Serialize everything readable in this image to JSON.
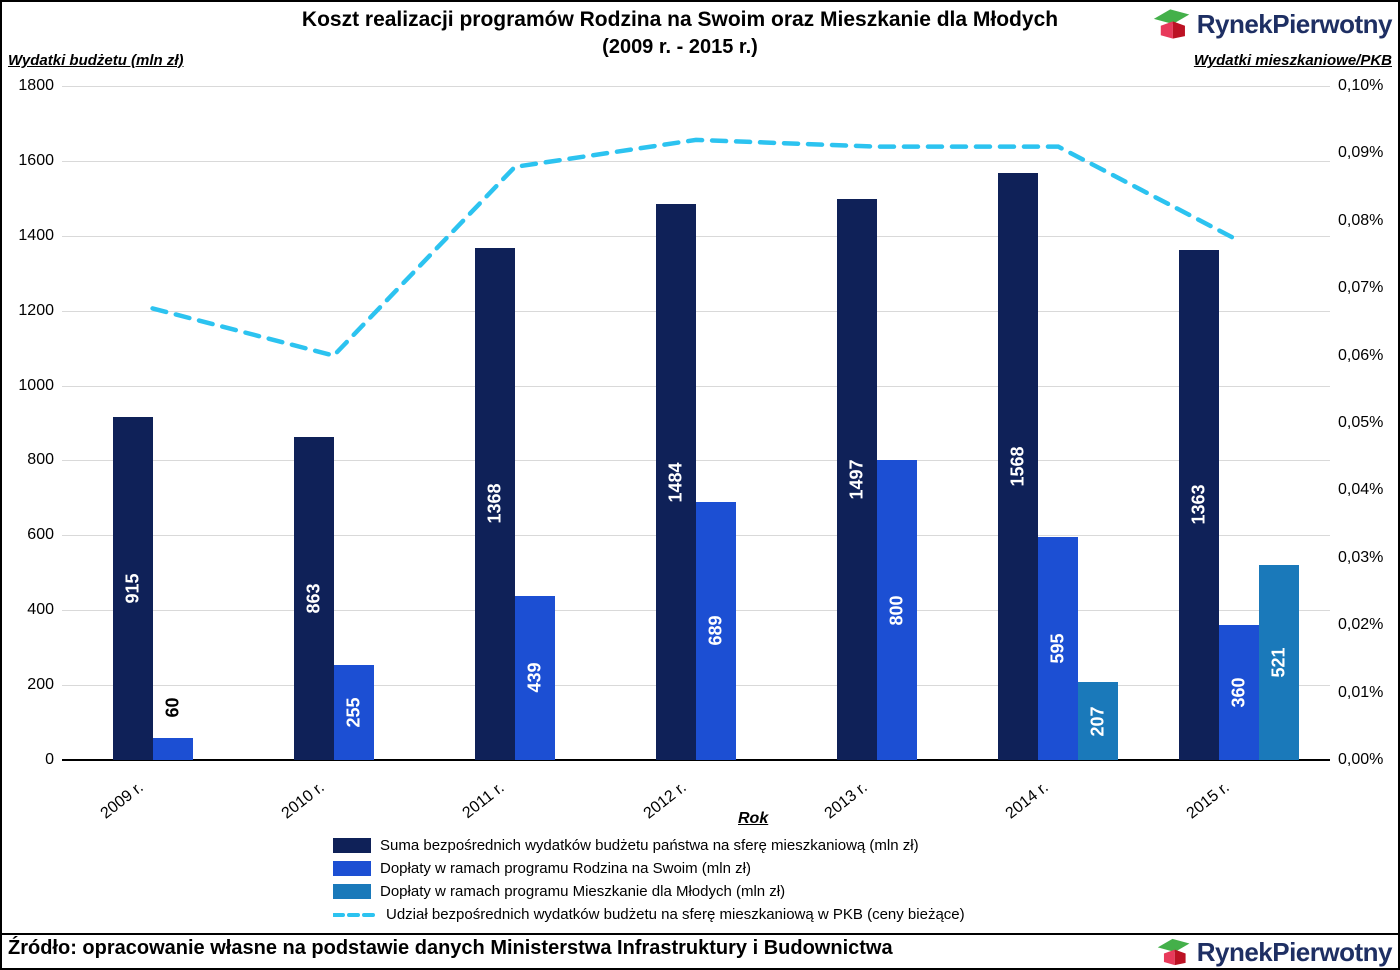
{
  "title": {
    "line1": "Koszt realizacji programów Rodzina na Swoim oraz Mieszkanie dla Młodych",
    "line2": "(2009 r. - 2015 r.)"
  },
  "left_axis": {
    "label": "Wydatki budżetu (mln zł)",
    "ticks": [
      "1800",
      "1600",
      "1400",
      "1200",
      "1000",
      "800",
      "600",
      "400",
      "200",
      "0"
    ]
  },
  "right_axis": {
    "label": "Wydatki mieszkaniowe/PKB",
    "ticks": [
      "0,10%",
      "0,09%",
      "0,08%",
      "0,07%",
      "0,06%",
      "0,05%",
      "0,04%",
      "0,03%",
      "0,02%",
      "0,01%",
      "0,00%"
    ]
  },
  "x_axis": {
    "label": "Rok"
  },
  "chart_data": {
    "type": "bar",
    "title": "Koszt realizacji programów Rodzina na Swoim oraz Mieszkanie dla Młodych (2009 r. - 2015 r.)",
    "xlabel": "Rok",
    "ylabel_left": "Wydatki budżetu (mln zł)",
    "ylabel_right": "Wydatki mieszkaniowe/PKB",
    "left_ylim": [
      0,
      1800
    ],
    "right_ylim": [
      0,
      0.1
    ],
    "grid": true,
    "legend_position": "bottom",
    "categories": [
      "2009 r.",
      "2010 r.",
      "2011 r.",
      "2012 r.",
      "2013 r.",
      "2014 r.",
      "2015 r."
    ],
    "series": [
      {
        "name": "Suma bezpośrednich wydatków budżetu państwa na sferę mieszkaniową (mln zł)",
        "type": "bar",
        "color": "#0f2158",
        "values": [
          915,
          863,
          1368,
          1484,
          1497,
          1568,
          1363
        ]
      },
      {
        "name": "Dopłaty w ramach programu Rodzina na Swoim (mln zł)",
        "type": "bar",
        "color": "#1c4fd3",
        "values": [
          60,
          255,
          439,
          689,
          800,
          595,
          360
        ]
      },
      {
        "name": "Dopłaty w ramach programu Mieszkanie dla Młodych  (mln zł)",
        "type": "bar",
        "color": "#1a79ba",
        "values": [
          null,
          null,
          null,
          null,
          null,
          207,
          521
        ]
      },
      {
        "name": "Udział bezpośrednich wydatków budżetu na sferę mieszkaniową w PKB (ceny bieżące)",
        "type": "line",
        "dashed": true,
        "axis": "right",
        "unit": "%",
        "color": "#2cc3f0",
        "values": [
          0.067,
          0.06,
          0.088,
          0.092,
          0.091,
          0.091,
          0.077
        ]
      }
    ]
  },
  "footer": {
    "source": "Źródło: opracowanie własne na podstawie danych Ministerstwa Infrastruktury i Budownictwa"
  },
  "logo": {
    "text": "RynekPierwotny",
    "icon_colors": {
      "roof": "#44b04a",
      "front": "#e83a5b",
      "side": "#bc1224"
    }
  },
  "colors": {
    "gridline": "#d9d9d9",
    "axis": "#000000",
    "logo_navy": "#1e2f63"
  }
}
